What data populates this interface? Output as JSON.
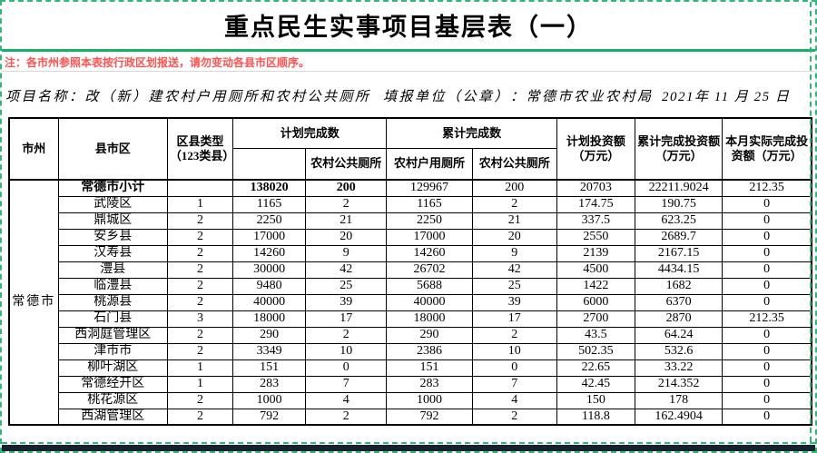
{
  "page": {
    "title": "重点民生实事项目基层表（一）",
    "note": "注：各市州参照本表按行政区划报送，请勿变动各县市区顺序。",
    "project_label": "项目名称：",
    "project_name": "改（新）建农村户用厕所和农村公共厕所",
    "unit_label": "填报单位（公章）：",
    "unit_name": "常德市农业农村局",
    "date": "2021年 11 月 25 日"
  },
  "table": {
    "headers": {
      "city": "市州",
      "county": "县市区",
      "type": "区县类型（123类县）",
      "planned": "计划完成数",
      "cumulative": "累计完成数",
      "planned_sub1": "",
      "rural_household": "农村户用厕所",
      "rural_public": "农村公共厕所",
      "planned_investment": "计划投资额（万元）",
      "cumulative_investment": "累计完成投资额（万元）",
      "month_investment": "本月实际完成投资额（万元）"
    },
    "city": "常德市",
    "rows": [
      {
        "name": "常德市小计",
        "type": "",
        "subtotal": true,
        "values": [
          "138020",
          "200",
          "129967",
          "200",
          "20703",
          "22211.9024",
          "212.35"
        ]
      },
      {
        "name": "武陵区",
        "type": "1",
        "values": [
          "1165",
          "2",
          "1165",
          "2",
          "174.75",
          "190.75",
          "0"
        ]
      },
      {
        "name": "鼎城区",
        "type": "2",
        "values": [
          "2250",
          "21",
          "2250",
          "21",
          "337.5",
          "623.25",
          "0"
        ]
      },
      {
        "name": "安乡县",
        "type": "2",
        "values": [
          "17000",
          "20",
          "17000",
          "20",
          "2550",
          "2689.7",
          "0"
        ]
      },
      {
        "name": "汉寿县",
        "type": "2",
        "values": [
          "14260",
          "9",
          "14260",
          "9",
          "2139",
          "2167.15",
          "0"
        ]
      },
      {
        "name": "澧县",
        "type": "2",
        "values": [
          "30000",
          "42",
          "26702",
          "42",
          "4500",
          "4434.15",
          "0"
        ]
      },
      {
        "name": "临澧县",
        "type": "2",
        "values": [
          "9480",
          "25",
          "5688",
          "25",
          "1422",
          "1682",
          "0"
        ]
      },
      {
        "name": "桃源县",
        "type": "2",
        "values": [
          "40000",
          "39",
          "40000",
          "39",
          "6000",
          "6370",
          "0"
        ]
      },
      {
        "name": "石门县",
        "type": "3",
        "values": [
          "18000",
          "17",
          "18000",
          "17",
          "2700",
          "2870",
          "212.35"
        ]
      },
      {
        "name": "西洞庭管理区",
        "type": "2",
        "values": [
          "290",
          "2",
          "290",
          "2",
          "43.5",
          "64.24",
          "0"
        ]
      },
      {
        "name": "津市市",
        "type": "2",
        "values": [
          "3349",
          "10",
          "2386",
          "10",
          "502.35",
          "532.6",
          "0"
        ]
      },
      {
        "name": "柳叶湖区",
        "type": "1",
        "values": [
          "151",
          "0",
          "151",
          "0",
          "22.65",
          "33.22",
          "0"
        ]
      },
      {
        "name": "常德经开区",
        "type": "1",
        "values": [
          "283",
          "7",
          "283",
          "7",
          "42.45",
          "214.352",
          "0"
        ]
      },
      {
        "name": "桃花源区",
        "type": "2",
        "values": [
          "1000",
          "4",
          "1000",
          "4",
          "150",
          "178",
          "0"
        ]
      },
      {
        "name": "西湖管理区",
        "type": "2",
        "values": [
          "792",
          "2",
          "792",
          "2",
          "118.8",
          "162.4904",
          "0"
        ]
      }
    ]
  },
  "colors": {
    "page_break_green": "#2fb878",
    "divider_green": "#14b163",
    "note_red": "#ff5250",
    "bottom_bar": "#16202e",
    "grid_black": "#000000"
  }
}
